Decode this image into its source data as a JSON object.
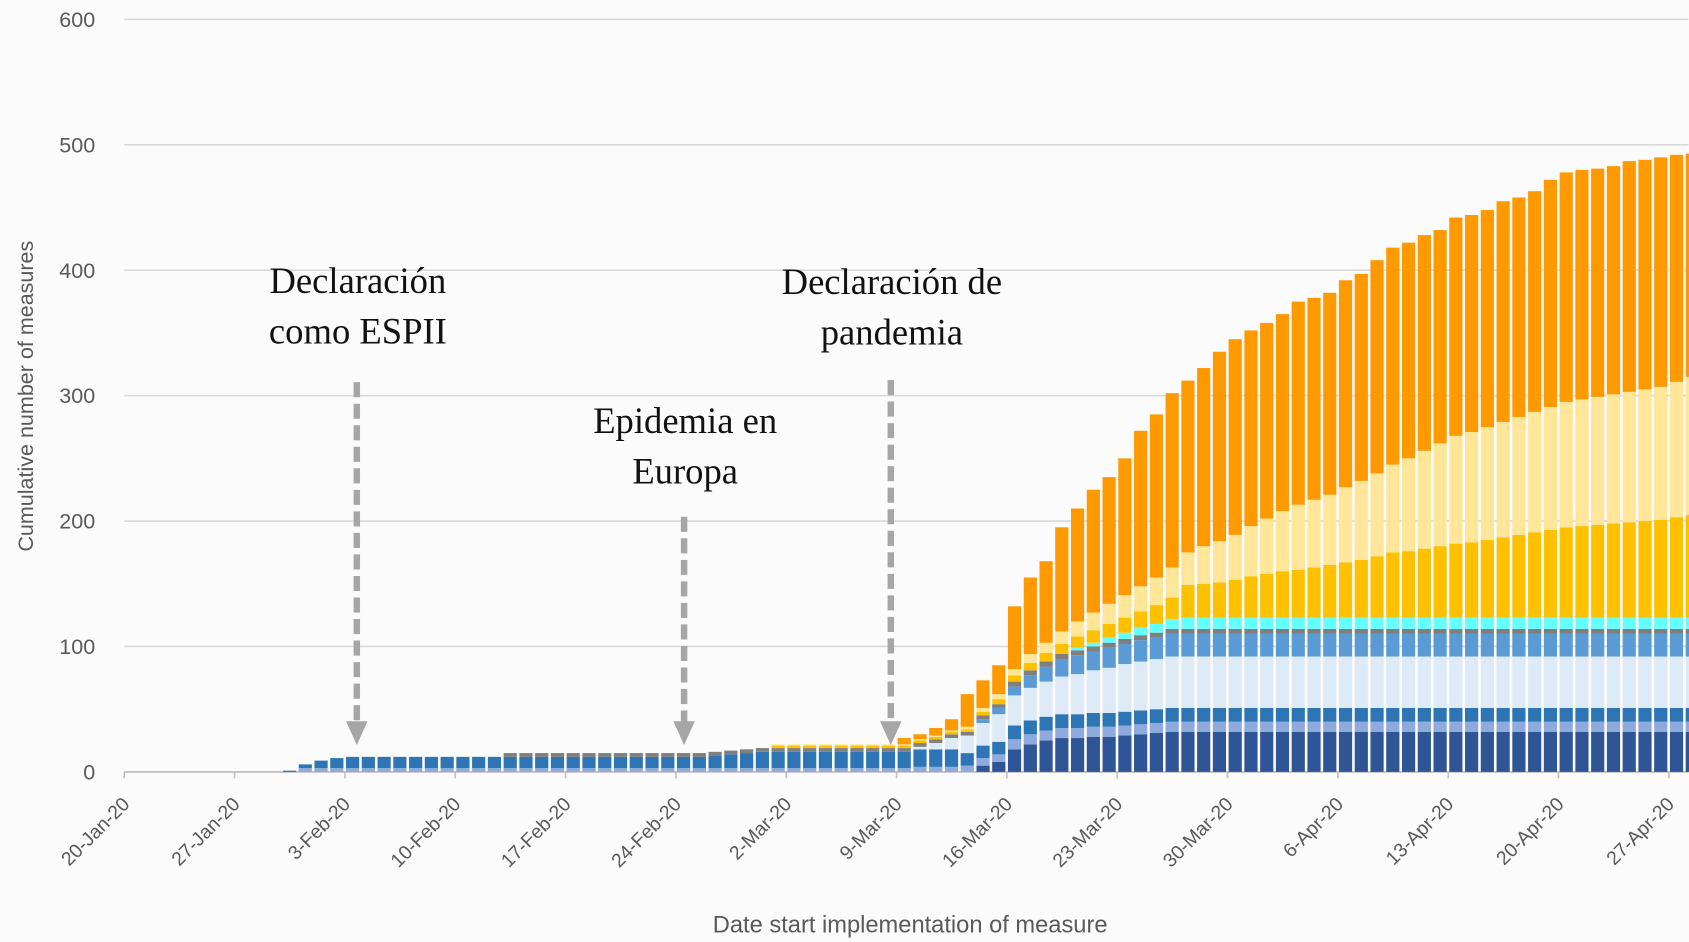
{
  "chart_data": {
    "type": "stacked_bar",
    "categories": [
      "20-Jan-20",
      null,
      null,
      null,
      null,
      null,
      null,
      "27-Jan-20",
      null,
      null,
      null,
      null,
      null,
      null,
      "3-Feb-20",
      null,
      null,
      null,
      null,
      null,
      null,
      "10-Feb-20",
      null,
      null,
      null,
      null,
      null,
      null,
      "17-Feb-20",
      null,
      null,
      null,
      null,
      null,
      null,
      "24-Feb-20",
      null,
      null,
      null,
      null,
      null,
      null,
      "2-Mar-20",
      null,
      null,
      null,
      null,
      null,
      null,
      "9-Mar-20",
      null,
      null,
      null,
      null,
      null,
      null,
      "16-Mar-20",
      null,
      null,
      null,
      null,
      null,
      null,
      "23-Mar-20",
      null,
      null,
      null,
      null,
      null,
      null,
      "30-Mar-20",
      null,
      null,
      null,
      null,
      null,
      null,
      "6-Apr-20",
      null,
      null,
      null,
      null,
      null,
      null,
      "13-Apr-20",
      null,
      null,
      null,
      null,
      null,
      null,
      "20-Apr-20",
      null,
      null,
      null,
      null,
      null,
      null,
      "27-Apr-20",
      null
    ],
    "series": [
      {
        "color": "#2f5597",
        "values": [
          0,
          0,
          0,
          0,
          0,
          0,
          0,
          0,
          0,
          0,
          0,
          0,
          0,
          0,
          0,
          0,
          0,
          0,
          0,
          0,
          0,
          0,
          0,
          0,
          0,
          0,
          0,
          0,
          0,
          0,
          0,
          0,
          0,
          0,
          0,
          0,
          0,
          0,
          0,
          0,
          0,
          0,
          0,
          0,
          0,
          0,
          0,
          0,
          0,
          0,
          0,
          0,
          0,
          0,
          5,
          8,
          18,
          22,
          25,
          27,
          27,
          28,
          28,
          29,
          30,
          31,
          32,
          32,
          32,
          32,
          32,
          32,
          32,
          32,
          32,
          32,
          32,
          32,
          32,
          32,
          32,
          32,
          32,
          32,
          32,
          32,
          32,
          32,
          32,
          32,
          32,
          32,
          32,
          32,
          32,
          32,
          32,
          32,
          32,
          32
        ]
      },
      {
        "color": "#8faadc",
        "values": [
          0,
          0,
          0,
          0,
          0,
          0,
          0,
          0,
          0,
          0,
          0,
          3,
          3,
          3,
          3,
          3,
          3,
          3,
          3,
          3,
          3,
          3,
          3,
          3,
          3,
          3,
          3,
          3,
          3,
          3,
          3,
          3,
          3,
          3,
          3,
          3,
          3,
          3,
          3,
          3,
          3,
          3,
          3,
          3,
          3,
          3,
          3,
          3,
          3,
          3,
          4,
          4,
          4,
          5,
          6,
          6,
          8,
          8,
          8,
          8,
          8,
          8,
          8,
          8,
          8,
          8,
          8,
          8,
          8,
          8,
          8,
          8,
          8,
          8,
          8,
          8,
          8,
          8,
          8,
          8,
          8,
          8,
          8,
          8,
          8,
          8,
          8,
          8,
          8,
          8,
          8,
          8,
          8,
          8,
          8,
          8,
          8,
          8,
          8,
          8
        ]
      },
      {
        "color": "#2e75b6",
        "values": [
          0,
          0,
          0,
          0,
          0,
          0,
          0,
          0,
          0,
          0,
          1,
          3,
          6,
          8,
          9,
          9,
          9,
          9,
          9,
          9,
          9,
          9,
          9,
          9,
          9,
          9,
          9,
          9,
          9,
          9,
          9,
          9,
          9,
          9,
          9,
          9,
          9,
          10,
          11,
          12,
          13,
          13,
          13,
          13,
          13,
          13,
          13,
          13,
          13,
          13,
          14,
          14,
          14,
          10,
          10,
          10,
          11,
          11,
          11,
          11,
          11,
          11,
          11,
          11,
          11,
          11,
          11,
          11,
          11,
          11,
          11,
          11,
          11,
          11,
          11,
          11,
          11,
          11,
          11,
          11,
          11,
          11,
          11,
          11,
          11,
          11,
          11,
          11,
          11,
          11,
          11,
          11,
          11,
          11,
          11,
          11,
          11,
          11,
          11,
          11
        ]
      },
      {
        "color": "#deebf7",
        "values": [
          0,
          0,
          0,
          0,
          0,
          0,
          0,
          0,
          0,
          0,
          0,
          0,
          0,
          0,
          0,
          0,
          0,
          0,
          0,
          0,
          0,
          0,
          0,
          0,
          0,
          0,
          0,
          0,
          0,
          0,
          0,
          0,
          0,
          0,
          0,
          0,
          0,
          0,
          0,
          0,
          0,
          0,
          0,
          0,
          0,
          0,
          0,
          0,
          0,
          0,
          2,
          5,
          9,
          14,
          18,
          22,
          24,
          26,
          28,
          30,
          32,
          34,
          36,
          38,
          39,
          40,
          41,
          41,
          41,
          41,
          41,
          41,
          41,
          41,
          41,
          41,
          41,
          41,
          41,
          41,
          41,
          41,
          41,
          41,
          41,
          41,
          41,
          41,
          41,
          41,
          41,
          41,
          41,
          41,
          41,
          41,
          41,
          41,
          41,
          41
        ]
      },
      {
        "color": "#5b9bd5",
        "values": [
          0,
          0,
          0,
          0,
          0,
          0,
          0,
          0,
          0,
          0,
          0,
          0,
          0,
          0,
          0,
          0,
          0,
          0,
          0,
          0,
          0,
          0,
          0,
          0,
          0,
          0,
          0,
          0,
          0,
          0,
          0,
          0,
          0,
          0,
          0,
          0,
          0,
          0,
          0,
          0,
          0,
          0,
          0,
          0,
          0,
          0,
          0,
          0,
          0,
          0,
          0,
          0,
          0,
          0,
          3,
          5,
          7,
          10,
          12,
          14,
          15,
          15,
          16,
          16,
          17,
          17,
          18,
          18,
          18,
          18,
          18,
          18,
          18,
          18,
          18,
          18,
          18,
          18,
          18,
          18,
          18,
          18,
          18,
          18,
          18,
          18,
          18,
          18,
          18,
          18,
          18,
          18,
          18,
          18,
          18,
          18,
          18,
          18,
          18,
          18
        ]
      },
      {
        "color": "#7f7f7f",
        "values": [
          0,
          0,
          0,
          0,
          0,
          0,
          0,
          0,
          0,
          0,
          0,
          0,
          0,
          0,
          0,
          0,
          0,
          0,
          0,
          0,
          0,
          0,
          0,
          0,
          3,
          3,
          3,
          3,
          3,
          3,
          3,
          3,
          3,
          3,
          3,
          3,
          3,
          3,
          3,
          3,
          3,
          3,
          3,
          3,
          3,
          3,
          3,
          3,
          3,
          3,
          3,
          3,
          3,
          3,
          3,
          3,
          4,
          4,
          4,
          4,
          4,
          4,
          4,
          4,
          4,
          4,
          4,
          4,
          4,
          4,
          4,
          4,
          4,
          4,
          4,
          4,
          4,
          4,
          4,
          4,
          4,
          4,
          4,
          4,
          4,
          4,
          4,
          4,
          4,
          4,
          4,
          4,
          4,
          4,
          4,
          4,
          4,
          4,
          4,
          4
        ]
      },
      {
        "color": "#66ffff",
        "values": [
          0,
          0,
          0,
          0,
          0,
          0,
          0,
          0,
          0,
          0,
          0,
          0,
          0,
          0,
          0,
          0,
          0,
          0,
          0,
          0,
          0,
          0,
          0,
          0,
          0,
          0,
          0,
          0,
          0,
          0,
          0,
          0,
          0,
          0,
          0,
          0,
          0,
          0,
          0,
          0,
          0,
          0,
          0,
          0,
          0,
          0,
          0,
          0,
          0,
          0,
          0,
          0,
          0,
          0,
          0,
          0,
          0,
          0,
          0,
          0,
          2,
          3,
          4,
          5,
          6,
          7,
          8,
          9,
          9,
          9,
          9,
          9,
          9,
          9,
          9,
          9,
          9,
          9,
          9,
          9,
          9,
          9,
          9,
          9,
          9,
          9,
          9,
          9,
          9,
          9,
          9,
          9,
          9,
          9,
          9,
          9,
          9,
          9,
          9,
          9
        ]
      },
      {
        "color": "#ffc000",
        "values": [
          0,
          0,
          0,
          0,
          0,
          0,
          0,
          0,
          0,
          0,
          0,
          0,
          0,
          0,
          0,
          0,
          0,
          0,
          0,
          0,
          0,
          0,
          0,
          0,
          0,
          0,
          0,
          0,
          0,
          0,
          0,
          0,
          0,
          0,
          0,
          0,
          0,
          0,
          0,
          0,
          0,
          2,
          2,
          2,
          2,
          2,
          2,
          2,
          2,
          2,
          2,
          2,
          2,
          2,
          3,
          4,
          5,
          6,
          7,
          8,
          9,
          10,
          11,
          12,
          13,
          15,
          17,
          26,
          27,
          28,
          30,
          33,
          35,
          37,
          38,
          40,
          42,
          44,
          46,
          49,
          52,
          53,
          55,
          57,
          59,
          60,
          62,
          64,
          66,
          68,
          70,
          72,
          73,
          74,
          75,
          76,
          77,
          78,
          80,
          82
        ]
      },
      {
        "color": "#ffe699",
        "values": [
          0,
          0,
          0,
          0,
          0,
          0,
          0,
          0,
          0,
          0,
          0,
          0,
          0,
          0,
          0,
          0,
          0,
          0,
          0,
          0,
          0,
          0,
          0,
          0,
          0,
          0,
          0,
          0,
          0,
          0,
          0,
          0,
          0,
          0,
          0,
          0,
          0,
          0,
          0,
          0,
          0,
          1,
          1,
          1,
          1,
          1,
          1,
          1,
          1,
          1,
          1,
          1,
          1,
          2,
          3,
          4,
          5,
          7,
          8,
          10,
          12,
          14,
          16,
          18,
          20,
          22,
          24,
          26,
          30,
          33,
          36,
          40,
          44,
          48,
          52,
          54,
          56,
          60,
          63,
          66,
          70,
          74,
          78,
          82,
          86,
          88,
          90,
          92,
          94,
          96,
          98,
          100,
          101,
          102,
          103,
          104,
          105,
          106,
          108,
          110
        ]
      },
      {
        "color": "#ff9900",
        "values": [
          0,
          0,
          0,
          0,
          0,
          0,
          0,
          0,
          0,
          0,
          0,
          0,
          0,
          0,
          0,
          0,
          0,
          0,
          0,
          0,
          0,
          0,
          0,
          0,
          0,
          0,
          0,
          0,
          0,
          0,
          0,
          0,
          0,
          0,
          0,
          0,
          0,
          0,
          0,
          0,
          0,
          0,
          0,
          0,
          0,
          0,
          0,
          0,
          0,
          5,
          4,
          6,
          9,
          26,
          22,
          23,
          50,
          61,
          65,
          83,
          90,
          98,
          101,
          109,
          124,
          130,
          139,
          137,
          142,
          151,
          156,
          156,
          156,
          157,
          162,
          161,
          161,
          165,
          165,
          170,
          173,
          172,
          172,
          170,
          174,
          173,
          173,
          176,
          175,
          176,
          181,
          183,
          183,
          182,
          182,
          184,
          183,
          183,
          181,
          178
        ]
      }
    ],
    "ylim": [
      0,
      600
    ],
    "yticks": [
      0,
      100,
      200,
      300,
      400,
      500,
      600
    ],
    "grid": true,
    "y_label": "Cumulative number of measures",
    "x_label": "Date start implementation of measure",
    "annotations": [
      {
        "text": [
          "Declaración",
          "como ESPII"
        ]
      },
      {
        "text": [
          "Epidemia en",
          "Europa"
        ]
      },
      {
        "text": [
          "Declaración de",
          "pandemia"
        ]
      }
    ]
  }
}
